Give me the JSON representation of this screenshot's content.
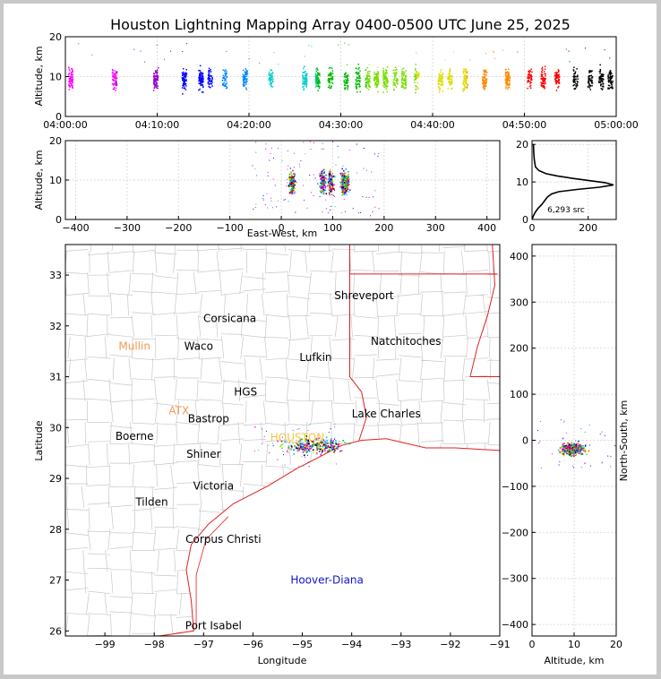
{
  "chart_data": [
    {
      "type": "scatter",
      "panel": "altitude-vs-time",
      "title": "Houston Lightning Mapping Array 0400-0500 UTC June 25, 2025",
      "xlabel": "",
      "ylabel": "Altitude, km",
      "xlim": [
        0,
        60
      ],
      "ylim": [
        0,
        20
      ],
      "xticks": [
        0,
        10,
        20,
        30,
        40,
        50,
        60
      ],
      "xtick_labels": [
        "04:00:00",
        "04:10:00",
        "04:20:00",
        "04:30:00",
        "04:40:00",
        "04:50:00",
        "05:00:00"
      ],
      "yticks": [
        0,
        10,
        20
      ],
      "yticks_labels": [
        "0",
        "10",
        "20"
      ],
      "grid": true,
      "clusters_minutes": [
        0.5,
        5.3,
        9.8,
        12.9,
        14.7,
        15.7,
        17.3,
        19.5,
        22.3,
        26,
        27.4,
        28.8,
        30.5,
        31.8,
        32.9,
        33.8,
        34.8,
        35.9,
        36.8,
        38.2,
        40.8,
        41.8,
        43.5,
        45.6,
        48.1,
        50.5,
        52,
        53.5,
        55.5,
        57.1,
        58.3,
        59.3
      ]
    },
    {
      "type": "scatter",
      "panel": "altitude-vs-east-west",
      "xlabel": "East-West, km",
      "ylabel": "Altitude, km",
      "xlim": [
        -420,
        425
      ],
      "ylim": [
        0,
        20
      ],
      "xticks": [
        -400,
        -300,
        -200,
        -100,
        0,
        100,
        200,
        300,
        400
      ],
      "yticks": [
        0,
        10,
        20
      ],
      "grid": true,
      "clusters_km": [
        20,
        80,
        95,
        120,
        125
      ]
    },
    {
      "type": "line",
      "panel": "altitude-histogram",
      "xlabel": "",
      "ylabel": "",
      "xlim": [
        0,
        300
      ],
      "ylim": [
        0,
        21
      ],
      "xticks": [
        0,
        200
      ],
      "yticks": [
        0,
        10,
        20
      ],
      "annotation": "6,293 src",
      "profile": [
        [
          0,
          0
        ],
        [
          5,
          1
        ],
        [
          12,
          2
        ],
        [
          22,
          3
        ],
        [
          35,
          4
        ],
        [
          45,
          5
        ],
        [
          55,
          6
        ],
        [
          70,
          6.8
        ],
        [
          95,
          7.4
        ],
        [
          160,
          8
        ],
        [
          240,
          8.6
        ],
        [
          290,
          9.2
        ],
        [
          260,
          9.8
        ],
        [
          200,
          10.4
        ],
        [
          140,
          11
        ],
        [
          90,
          11.6
        ],
        [
          50,
          12.2
        ],
        [
          25,
          13
        ],
        [
          12,
          14
        ],
        [
          8,
          16
        ],
        [
          6,
          18
        ],
        [
          5,
          20
        ]
      ]
    },
    {
      "type": "scatter",
      "panel": "plan-view-map",
      "xlabel": "Longitude",
      "ylabel": "Latitude",
      "xlim": [
        -99.8,
        -91
      ],
      "ylim": [
        25.9,
        33.6
      ],
      "xticks": [
        -99,
        -98,
        -97,
        -96,
        -95,
        -94,
        -93,
        -92,
        -91
      ],
      "yticks": [
        26,
        27,
        28,
        29,
        30,
        31,
        32,
        33
      ],
      "cities": [
        {
          "name": "Shreveport",
          "lon": -93.75,
          "lat": 32.6,
          "color": "#000000"
        },
        {
          "name": "Corsicana",
          "lon": -96.47,
          "lat": 32.15,
          "color": "#000000"
        },
        {
          "name": "Natchitoches",
          "lon": -92.9,
          "lat": 31.7,
          "color": "#000000"
        },
        {
          "name": "Mullin",
          "lon": -98.4,
          "lat": 31.6,
          "color": "#f39a55"
        },
        {
          "name": "Waco",
          "lon": -97.1,
          "lat": 31.6,
          "color": "#000000"
        },
        {
          "name": "Lufkin",
          "lon": -94.73,
          "lat": 31.38,
          "color": "#000000"
        },
        {
          "name": "HGS",
          "lon": -96.15,
          "lat": 30.7,
          "color": "#000000"
        },
        {
          "name": "ATX",
          "lon": -97.5,
          "lat": 30.33,
          "color": "#f39a55"
        },
        {
          "name": "Bastrop",
          "lon": -96.9,
          "lat": 30.17,
          "color": "#000000"
        },
        {
          "name": "Lake Charles",
          "lon": -93.3,
          "lat": 30.27,
          "color": "#000000"
        },
        {
          "name": "Boerne",
          "lon": -98.4,
          "lat": 29.83,
          "color": "#000000"
        },
        {
          "name": "HOUSTON",
          "lon": -95.1,
          "lat": 29.8,
          "color": "#f5c542"
        },
        {
          "name": "Shiner",
          "lon": -97.0,
          "lat": 29.48,
          "color": "#000000"
        },
        {
          "name": "Victoria",
          "lon": -96.8,
          "lat": 28.85,
          "color": "#000000"
        },
        {
          "name": "Tilden",
          "lon": -98.05,
          "lat": 28.53,
          "color": "#000000"
        },
        {
          "name": "Corpus Christi",
          "lon": -96.6,
          "lat": 27.8,
          "color": "#000000"
        },
        {
          "name": "Hoover-Diana",
          "lon": -94.5,
          "lat": 27.0,
          "color": "#1414d2"
        },
        {
          "name": "Port Isabel",
          "lon": -96.8,
          "lat": 26.1,
          "color": "#000000"
        }
      ]
    },
    {
      "type": "scatter",
      "panel": "north-south-vs-altitude",
      "xlabel": "Altitude, km",
      "ylabel": "North-South, km",
      "xlim": [
        0,
        20
      ],
      "ylim": [
        -425,
        425
      ],
      "xticks": [
        0,
        10,
        20
      ],
      "yticks": [
        -400,
        -300,
        -200,
        -100,
        0,
        100,
        200,
        300,
        400
      ],
      "grid": true
    }
  ]
}
